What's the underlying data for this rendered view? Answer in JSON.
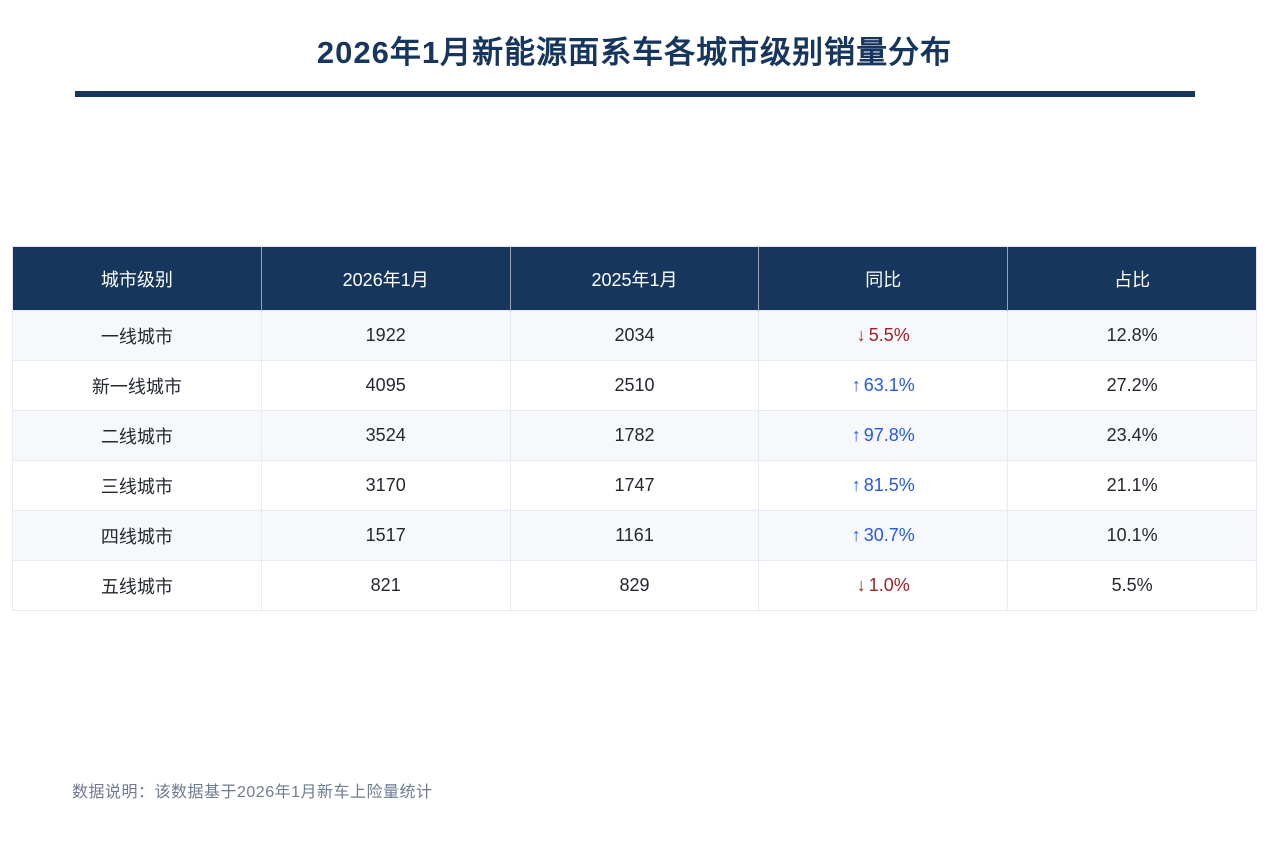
{
  "page": {
    "title": "2026年1月新能源面系车各城市级别销量分布",
    "footer_note": "数据说明：该数据基于2026年1月新车上险量统计"
  },
  "table": {
    "columns": [
      "城市级别",
      "2026年1月",
      "2025年1月",
      "同比",
      "占比"
    ],
    "rows": [
      {
        "city_tier": "一线城市",
        "current": "1922",
        "previous": "2034",
        "yoy": "5.5%",
        "yoy_direction": "down",
        "share": "12.8%"
      },
      {
        "city_tier": "新一线城市",
        "current": "4095",
        "previous": "2510",
        "yoy": "63.1%",
        "yoy_direction": "up",
        "share": "27.2%"
      },
      {
        "city_tier": "二线城市",
        "current": "3524",
        "previous": "1782",
        "yoy": "97.8%",
        "yoy_direction": "up",
        "share": "23.4%"
      },
      {
        "city_tier": "三线城市",
        "current": "3170",
        "previous": "1747",
        "yoy": "81.5%",
        "yoy_direction": "up",
        "share": "21.1%"
      },
      {
        "city_tier": "四线城市",
        "current": "1517",
        "previous": "1161",
        "yoy": "30.7%",
        "yoy_direction": "up",
        "share": "10.1%"
      },
      {
        "city_tier": "五线城市",
        "current": "821",
        "previous": "829",
        "yoy": "1.0%",
        "yoy_direction": "down",
        "share": "5.5%"
      }
    ]
  },
  "icons": {
    "up_arrow": "↑",
    "down_arrow": "↓"
  },
  "colors": {
    "navy": "#17365d",
    "yoy_up_blue": "#2458e6",
    "yoy_down_red": "#a02126",
    "row_alt_bg": "#f7f8fb",
    "cell_border": "#e7eaf3",
    "footer_gray": "#6e7b93"
  },
  "chart_data": {
    "type": "table",
    "title": "2026年1月新能源面系车各城市级别销量分布",
    "columns": [
      "城市级别",
      "2026年1月",
      "2025年1月",
      "同比",
      "占比"
    ],
    "rows": [
      [
        "一线城市",
        1922,
        2034,
        "-5.5%",
        "12.8%"
      ],
      [
        "新一线城市",
        4095,
        2510,
        "+63.1%",
        "27.2%"
      ],
      [
        "二线城市",
        3524,
        1782,
        "+97.8%",
        "23.4%"
      ],
      [
        "三线城市",
        3170,
        1747,
        "+81.5%",
        "21.1%"
      ],
      [
        "四线城市",
        1517,
        1161,
        "+30.7%",
        "10.1%"
      ],
      [
        "五线城市",
        821,
        829,
        "-1.0%",
        "5.5%"
      ]
    ],
    "note": "数据说明：该数据基于2026年1月新车上险量统计"
  }
}
